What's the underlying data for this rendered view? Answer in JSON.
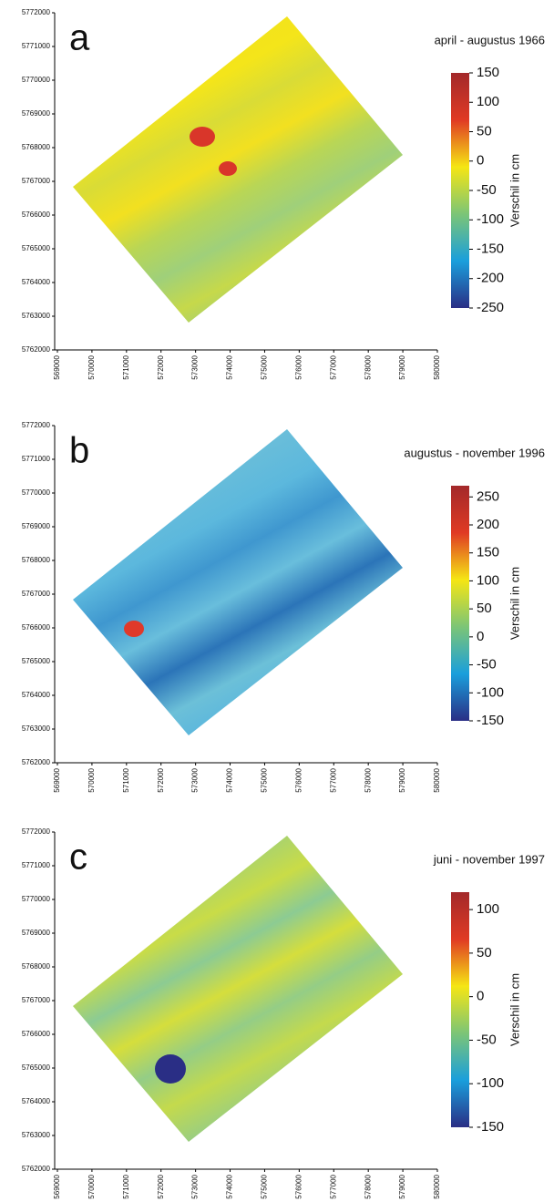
{
  "chart_data": [
    {
      "type": "map",
      "label": "a",
      "title": "april - augustus 1966",
      "colorbar_label": "Verschil in cm",
      "xlim": [
        569000,
        580000
      ],
      "xticks": [
        569000,
        570000,
        571000,
        572000,
        573000,
        574000,
        575000,
        576000,
        577000,
        578000,
        579000,
        580000
      ],
      "ylim": [
        5762000,
        5772000
      ],
      "yticks": [
        5762000,
        5763000,
        5764000,
        5765000,
        5766000,
        5767000,
        5768000,
        5769000,
        5770000,
        5771000,
        5772000
      ],
      "clim": [
        -250,
        150
      ],
      "cticks": [
        -250,
        -200,
        -150,
        -100,
        -50,
        0,
        50,
        100,
        150
      ],
      "colormap": [
        "#2a2e85",
        "#1a9fdc",
        "#7cc576",
        "#f5e614",
        "#e03a24",
        "#a3292a"
      ]
    },
    {
      "type": "map",
      "label": "b",
      "title": "augustus - november 1996",
      "colorbar_label": "Verschil in cm",
      "xlim": [
        569000,
        580000
      ],
      "xticks": [
        569000,
        570000,
        571000,
        572000,
        573000,
        574000,
        575000,
        576000,
        577000,
        578000,
        579000,
        580000
      ],
      "ylim": [
        5762000,
        5772000
      ],
      "yticks": [
        5762000,
        5763000,
        5764000,
        5765000,
        5766000,
        5767000,
        5768000,
        5769000,
        5770000,
        5771000,
        5772000
      ],
      "clim": [
        -150,
        270
      ],
      "cticks": [
        -150,
        -100,
        -50,
        0,
        50,
        100,
        150,
        200,
        250
      ],
      "colormap": [
        "#2a2e85",
        "#1a9fdc",
        "#7cc576",
        "#f5e614",
        "#e03a24",
        "#a3292a"
      ]
    },
    {
      "type": "map",
      "label": "c",
      "title": "juni - november 1997",
      "colorbar_label": "Verschil in cm",
      "xlim": [
        569000,
        580000
      ],
      "xticks": [
        569000,
        570000,
        571000,
        572000,
        573000,
        574000,
        575000,
        576000,
        577000,
        578000,
        579000,
        580000
      ],
      "ylim": [
        5762000,
        5772000
      ],
      "yticks": [
        5762000,
        5763000,
        5764000,
        5765000,
        5766000,
        5767000,
        5768000,
        5769000,
        5770000,
        5771000,
        5772000
      ],
      "clim": [
        -150,
        120
      ],
      "cticks": [
        -150,
        -100,
        -50,
        0,
        50,
        100
      ],
      "colormap": [
        "#2a2e85",
        "#1a9fdc",
        "#7cc576",
        "#f5e614",
        "#e03a24",
        "#a3292a"
      ]
    }
  ]
}
